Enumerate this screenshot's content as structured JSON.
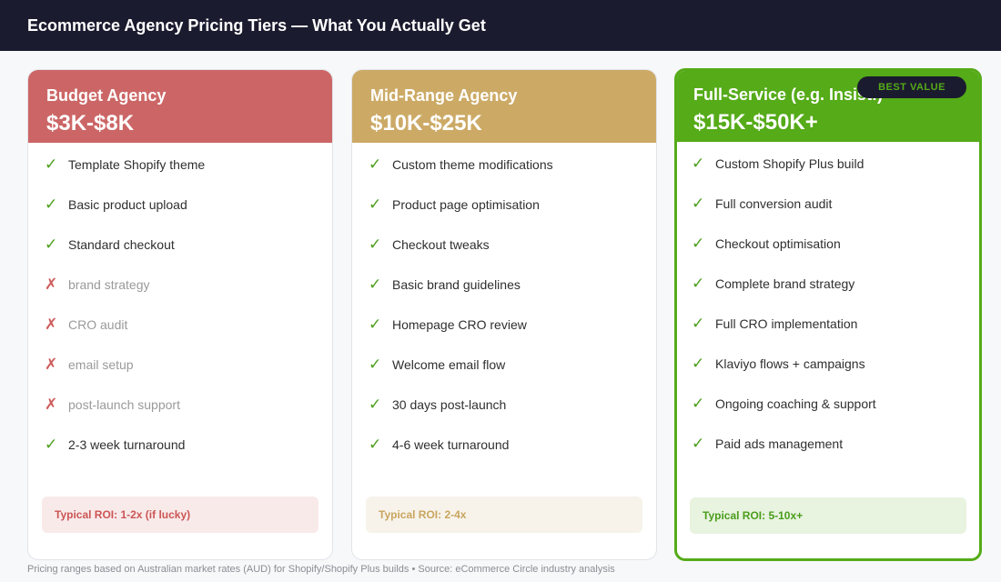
{
  "header": {
    "title": "Ecommerce Agency Pricing Tiers — What You Actually Get"
  },
  "tiers": [
    {
      "title": "Budget Agency",
      "price": "$3K-$8K",
      "header_color": "#cc6666",
      "features": [
        {
          "text": "Template Shopify theme",
          "included": true
        },
        {
          "text": "Basic product upload",
          "included": true
        },
        {
          "text": "Standard checkout",
          "included": true
        },
        {
          "text": "brand strategy",
          "included": false
        },
        {
          "text": "CRO audit",
          "included": false
        },
        {
          "text": "email setup",
          "included": false
        },
        {
          "text": "post-launch support",
          "included": false
        },
        {
          "text": "2-3 week turnaround",
          "included": true
        }
      ],
      "roi": "Typical ROI: 1-2x (if lucky)",
      "roi_color": "#cc5555",
      "roi_bg": "#f9eaea"
    },
    {
      "title": "Mid-Range Agency",
      "price": "$10K-$25K",
      "header_color": "#ccaa66",
      "features": [
        {
          "text": "Custom theme modifications",
          "included": true
        },
        {
          "text": "Product page optimisation",
          "included": true
        },
        {
          "text": "Checkout tweaks",
          "included": true
        },
        {
          "text": "Basic brand guidelines",
          "included": true
        },
        {
          "text": "Homepage CRO review",
          "included": true
        },
        {
          "text": "Welcome email flow",
          "included": true
        },
        {
          "text": "30 days post-launch",
          "included": true
        },
        {
          "text": "4-6 week turnaround",
          "included": true
        }
      ],
      "roi": "Typical ROI: 2-4x",
      "roi_color": "#c9a55e",
      "roi_bg": "#f7f3eb"
    },
    {
      "title": "Full-Service (e.g. Insist!)",
      "price": "$15K-$50K+",
      "header_color": "#55ab18",
      "badge": "BEST VALUE",
      "features": [
        {
          "text": "Custom Shopify Plus build",
          "included": true
        },
        {
          "text": "Full conversion audit",
          "included": true
        },
        {
          "text": "Checkout optimisation",
          "included": true
        },
        {
          "text": "Complete brand strategy",
          "included": true
        },
        {
          "text": "Full CRO implementation",
          "included": true
        },
        {
          "text": "Klaviyo flows + campaigns",
          "included": true
        },
        {
          "text": "Ongoing coaching & support",
          "included": true
        },
        {
          "text": "Paid ads management",
          "included": true
        }
      ],
      "roi": "Typical ROI: 5-10x+",
      "roi_color": "#4a9e1a",
      "roi_bg": "#e8f3e0"
    }
  ],
  "icons": {
    "included": "check-icon",
    "excluded": "cross-icon"
  },
  "footer": {
    "text": "Pricing ranges based on Australian market rates (AUD) for Shopify/Shopify Plus builds  •  Source: eCommerce Circle industry analysis"
  }
}
